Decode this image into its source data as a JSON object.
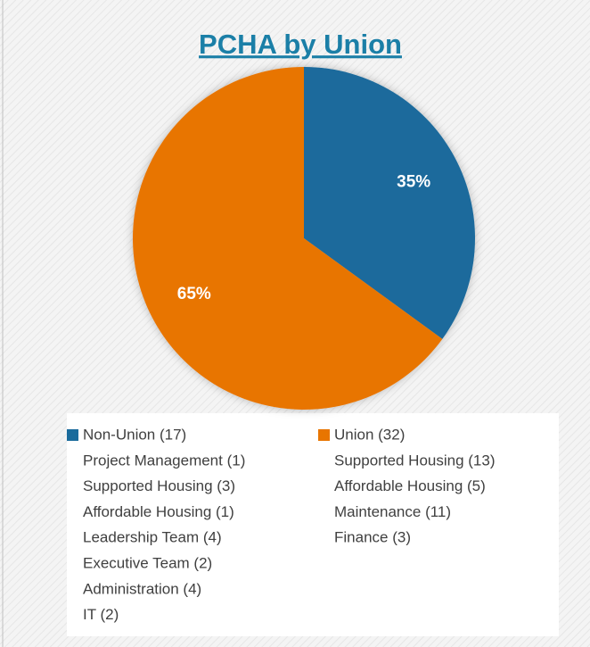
{
  "chart_data": {
    "type": "pie",
    "title": "PCHA by Union",
    "categories": [
      "Non-Union (17)",
      "Union (32)"
    ],
    "values": [
      35,
      65
    ],
    "value_labels": [
      "35%",
      "65%"
    ],
    "colors": [
      "#1a6b9c",
      "#e87500"
    ],
    "legend_details": [
      [
        "Project Management (1)",
        "Supported Housing (3)",
        "Affordable Housing (1)",
        "Leadership Team (4)",
        "Executive Team (2)",
        "Administration (4)",
        "IT (2)"
      ],
      [
        "Supported Housing (13)",
        "Affordable Housing (5)",
        "Maintenance (11)",
        "Finance (3)"
      ]
    ]
  }
}
